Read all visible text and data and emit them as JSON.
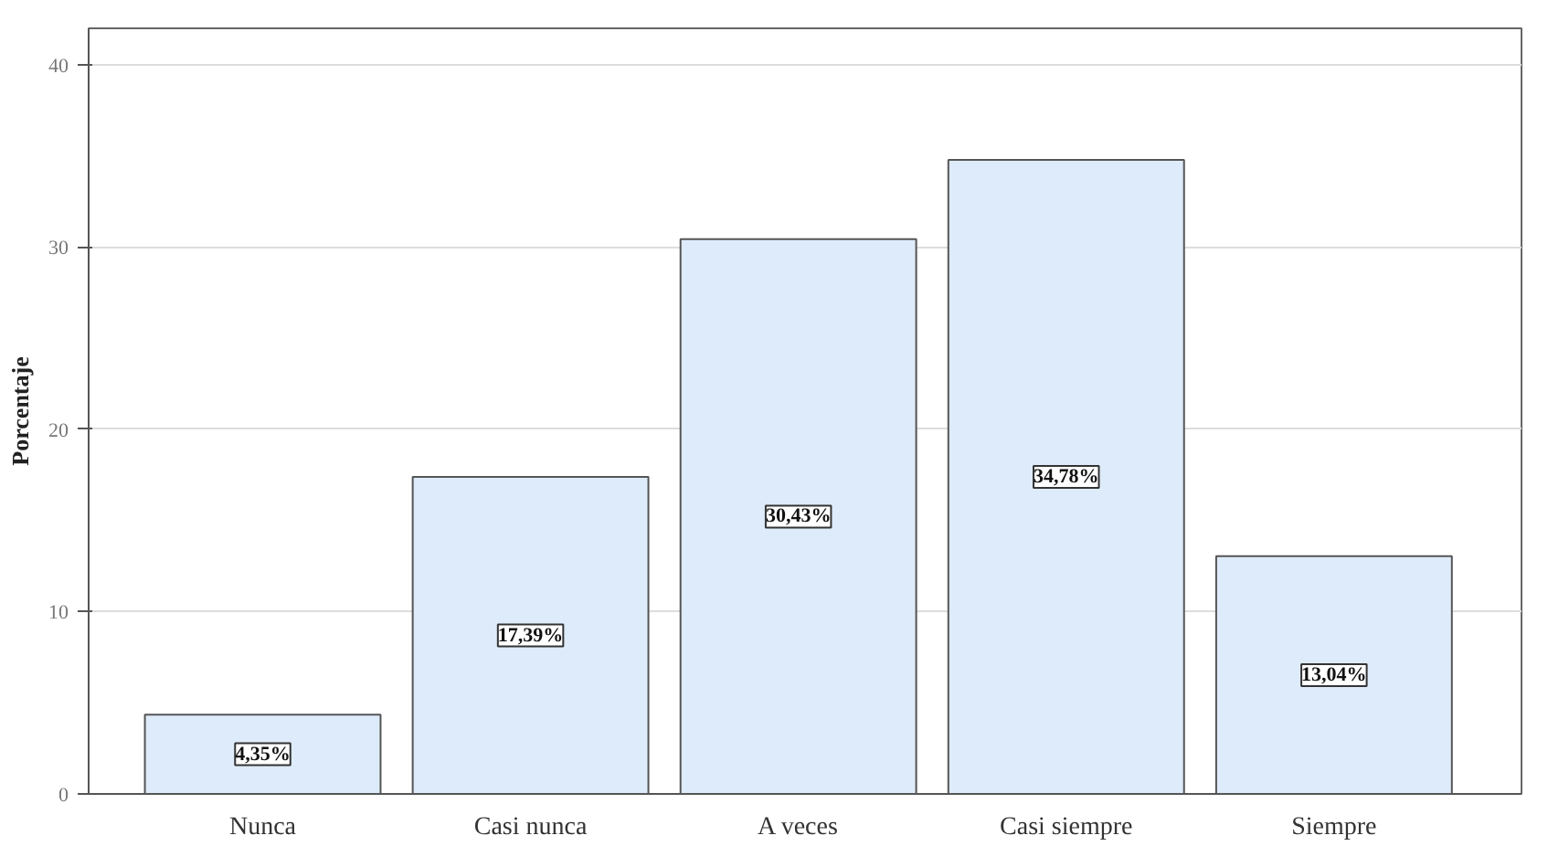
{
  "chart_data": {
    "type": "bar",
    "ylabel": "Porcentaje",
    "categories": [
      "Nunca",
      "Casi nunca",
      "A veces",
      "Casi siempre",
      "Siempre"
    ],
    "values": [
      4.35,
      17.39,
      30.43,
      34.78,
      13.04
    ],
    "color": "#deebfa",
    "value_labels": [
      "4,35%",
      "17,39%",
      "30,43%",
      "34,78%",
      "13,04%"
    ],
    "ylim": [
      0,
      42
    ],
    "yticks": [
      0,
      10,
      20,
      30,
      40
    ],
    "grid": "y"
  }
}
